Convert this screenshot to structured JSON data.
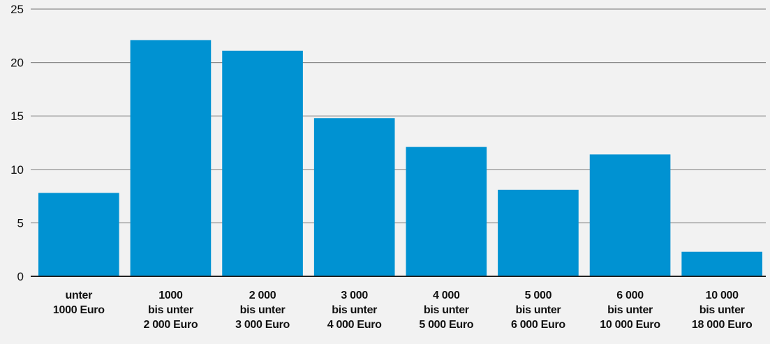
{
  "chart_data": {
    "type": "bar",
    "title": "",
    "xlabel": "",
    "ylabel": "",
    "categories": [
      [
        "unter",
        "1000 Euro"
      ],
      [
        "1000",
        "bis unter",
        "2 000 Euro"
      ],
      [
        "2 000",
        "bis unter",
        "3 000 Euro"
      ],
      [
        "3 000",
        "bis unter",
        "4 000 Euro"
      ],
      [
        "4 000",
        "bis unter",
        "5 000 Euro"
      ],
      [
        "5 000",
        "bis unter",
        "6 000 Euro"
      ],
      [
        "6 000",
        "bis unter",
        "10 000 Euro"
      ],
      [
        "10 000",
        "bis unter",
        "18 000 Euro"
      ]
    ],
    "values": [
      7.8,
      22.1,
      21.1,
      14.8,
      12.1,
      8.1,
      11.4,
      2.3
    ],
    "ylim": [
      0,
      25
    ],
    "yticks": [
      "0",
      "5",
      "10",
      "15",
      "20",
      "25"
    ],
    "grid": true,
    "bar_color": "#0092d2",
    "grid_color": "#8c8c8c",
    "background_color": "#f2f2f2"
  }
}
